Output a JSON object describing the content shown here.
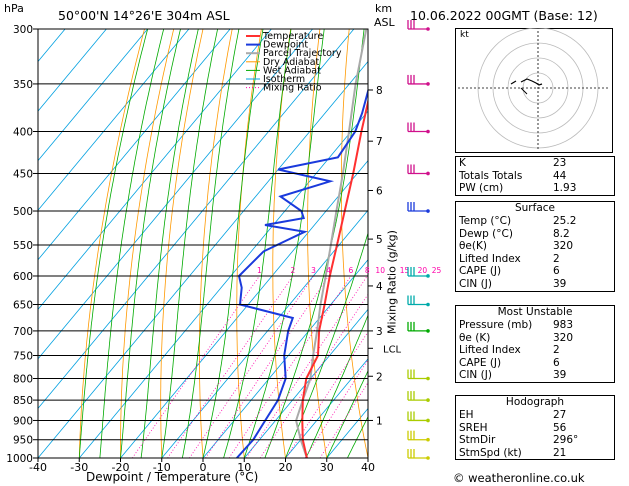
{
  "header": {
    "hpa_label": "hPa",
    "location": "50°00'N  14°26'E  304m  ASL",
    "km_label": "km",
    "asl_label": "ASL",
    "datetime": "10.06.2022  00GMT  (Base: 12)"
  },
  "footer": {
    "credit": "© weatheronline.co.uk"
  },
  "chart_data": {
    "type": "skew-t",
    "xlabel": "Dewpoint / Temperature (°C)",
    "ylabel_right": "Mixing Ratio (g/kg)",
    "x_ticks": [
      -40,
      -30,
      -20,
      -10,
      0,
      10,
      20,
      30,
      40
    ],
    "pressure_levels": [
      300,
      350,
      400,
      450,
      500,
      550,
      600,
      650,
      700,
      750,
      800,
      850,
      900,
      950,
      1000
    ],
    "km_ticks": [
      1,
      2,
      3,
      4,
      5,
      6,
      7,
      8
    ],
    "lcl_label": "LCL",
    "mixing_ratio_labels": [
      "1",
      "2",
      "3",
      "4",
      "6",
      "8",
      "10",
      "15",
      "20",
      "25"
    ],
    "legend": [
      "Temperature",
      "Dewpoint",
      "Parcel Trajectory",
      "Dry Adiabat",
      "Wet Adiabat",
      "Isotherm",
      "Mixing Ratio"
    ],
    "colors": {
      "temperature": "#ff3030",
      "dewpoint": "#1a3adc",
      "parcel": "#aaaaaa",
      "dry_adiabat": "#ff9900",
      "wet_adiabat": "#00aa00",
      "isotherm": "#00a0e0",
      "mixing_ratio": "#ff00aa"
    },
    "temperature": [
      [
        1000,
        25.2
      ],
      [
        950,
        20.5
      ],
      [
        900,
        16.5
      ],
      [
        850,
        12.5
      ],
      [
        800,
        9
      ],
      [
        750,
        7.2
      ],
      [
        700,
        2.5
      ],
      [
        650,
        -1.5
      ],
      [
        600,
        -6
      ],
      [
        550,
        -10.5
      ],
      [
        500,
        -15.5
      ],
      [
        450,
        -21
      ],
      [
        400,
        -27.5
      ],
      [
        350,
        -34.5
      ],
      [
        300,
        -42.5
      ]
    ],
    "dewpoint": [
      [
        1000,
        8.2
      ],
      [
        950,
        8.5
      ],
      [
        900,
        7.5
      ],
      [
        850,
        6.5
      ],
      [
        800,
        4
      ],
      [
        750,
        -1
      ],
      [
        700,
        -5
      ],
      [
        675,
        -6.5
      ],
      [
        650,
        -22
      ],
      [
        620,
        -25
      ],
      [
        600,
        -28
      ],
      [
        560,
        -27
      ],
      [
        530,
        -21
      ],
      [
        520,
        -32
      ],
      [
        510,
        -24
      ],
      [
        500,
        -26
      ],
      [
        480,
        -34
      ],
      [
        460,
        -25
      ],
      [
        445,
        -40
      ],
      [
        430,
        -28
      ],
      [
        400,
        -29
      ],
      [
        380,
        -31
      ],
      [
        350,
        -35
      ],
      [
        330,
        -38
      ],
      [
        300,
        -45
      ]
    ],
    "parcel": [
      [
        1000,
        25.2
      ],
      [
        950,
        20
      ],
      [
        900,
        15
      ],
      [
        850,
        12.5
      ],
      [
        800,
        10
      ],
      [
        750,
        6
      ],
      [
        700,
        2
      ],
      [
        650,
        -2.5
      ],
      [
        600,
        -7
      ],
      [
        550,
        -12
      ],
      [
        500,
        -17.5
      ],
      [
        450,
        -23.5
      ],
      [
        400,
        -30.5
      ],
      [
        350,
        -38.5
      ],
      [
        300,
        -47
      ]
    ]
  },
  "hodograph": {
    "label": "kt"
  },
  "indices": [
    {
      "label": "K",
      "value": "23"
    },
    {
      "label": "Totals Totals",
      "value": "44"
    },
    {
      "label": "PW (cm)",
      "value": "1.93"
    }
  ],
  "surface": {
    "title": "Surface",
    "rows": [
      {
        "label": "Temp (°C)",
        "value": "25.2"
      },
      {
        "label": "Dewp (°C)",
        "value": "8.2"
      },
      {
        "label": "θe(K)",
        "value": "320"
      },
      {
        "label": "Lifted Index",
        "value": "2"
      },
      {
        "label": "CAPE (J)",
        "value": "6"
      },
      {
        "label": "CIN (J)",
        "value": "39"
      }
    ]
  },
  "most_unstable": {
    "title": "Most Unstable",
    "rows": [
      {
        "label": "Pressure (mb)",
        "value": "983"
      },
      {
        "label": "θe (K)",
        "value": "320"
      },
      {
        "label": "Lifted Index",
        "value": "2"
      },
      {
        "label": "CAPE (J)",
        "value": "6"
      },
      {
        "label": "CIN (J)",
        "value": "39"
      }
    ]
  },
  "hodograph_table": {
    "title": "Hodograph",
    "rows": [
      {
        "label": "EH",
        "value": "27"
      },
      {
        "label": "SREH",
        "value": "56"
      },
      {
        "label": "StmDir",
        "value": "296°"
      },
      {
        "label": "StmSpd (kt)",
        "value": "21"
      }
    ]
  }
}
